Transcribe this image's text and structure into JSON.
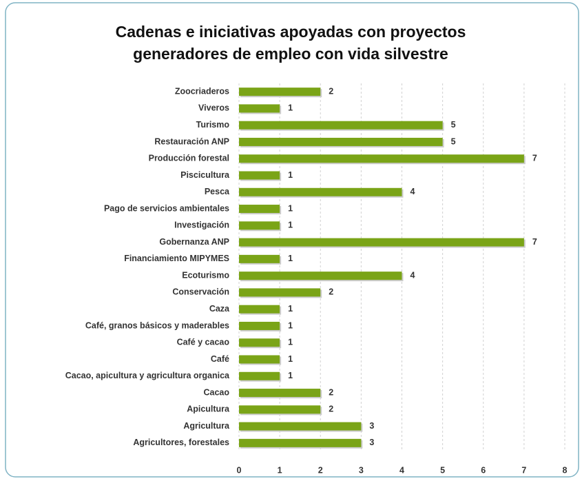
{
  "chart_data": {
    "type": "bar",
    "orientation": "horizontal",
    "title": [
      "Cadenas e iniciativas apoyadas con proyectos",
      "generadores de empleo con vida silvestre"
    ],
    "categories": [
      "Zoocriaderos",
      "Viveros",
      "Turismo",
      "Restauración ANP",
      "Producción forestal",
      "Piscicultura",
      "Pesca",
      "Pago de servicios ambientales",
      "Investigación",
      "Gobernanza ANP",
      "Financiamiento MIPYMES",
      "Ecoturismo",
      "Conservación",
      "Caza",
      "Café, granos básicos y maderables",
      "Café y cacao",
      "Café",
      "Cacao, apicultura y agricultura organica",
      "Cacao",
      "Apicultura",
      "Agricultura",
      "Agricultores, forestales"
    ],
    "values": [
      2,
      1,
      5,
      5,
      7,
      1,
      4,
      1,
      1,
      7,
      1,
      4,
      2,
      1,
      1,
      1,
      1,
      1,
      2,
      2,
      3,
      3
    ],
    "color": "#7aa417",
    "xlim": [
      0,
      8
    ],
    "xticks": [
      0,
      1,
      2,
      3,
      4,
      5,
      6,
      7,
      8
    ],
    "grid": true
  }
}
